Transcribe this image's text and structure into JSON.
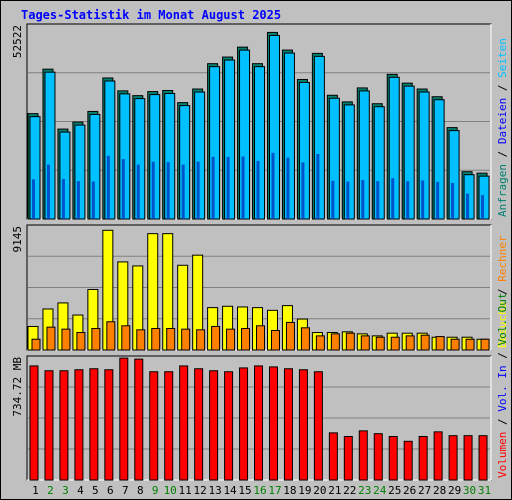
{
  "title": "Tages-Statistik im Monat August 2025",
  "colors": {
    "background": "#C0C0C0",
    "hits": "#00806F",
    "files": "#00C0FF",
    "pages": "#0040C0",
    "visits": "#FFFF00",
    "sites": "#FF8000",
    "kbytes": "#FF0000",
    "weekday_label": "#000000",
    "weekend_label": "#008000",
    "title": "#0000FF"
  },
  "chart_data": [
    {
      "type": "bar",
      "panel": "top",
      "max_label": "52522",
      "ylim": [
        0,
        52522
      ],
      "right_labels": [
        {
          "text": "Anfragen",
          "color": "#00806F"
        },
        {
          "text": "Dateien",
          "color": "#0000FF"
        },
        {
          "text": "Seiten",
          "color": "#00C0FF"
        }
      ],
      "right_separators": [
        "/",
        "/"
      ],
      "categories": [
        "1",
        "2",
        "3",
        "4",
        "5",
        "6",
        "7",
        "8",
        "9",
        "10",
        "11",
        "12",
        "13",
        "14",
        "15",
        "16",
        "17",
        "18",
        "19",
        "20",
        "21",
        "22",
        "23",
        "24",
        "25",
        "26",
        "27",
        "28",
        "29",
        "30",
        "31"
      ],
      "series": [
        {
          "name": "Anfragen",
          "values": [
            28400,
            40500,
            24200,
            26100,
            29000,
            38100,
            34600,
            33300,
            34400,
            34700,
            31400,
            35100,
            42000,
            43800,
            46500,
            42000,
            50500,
            45700,
            37700,
            44800,
            33400,
            31600,
            35400,
            31100,
            39100,
            36700,
            35100,
            33000,
            24600,
            12600,
            12200
          ]
        },
        {
          "name": "Dateien",
          "values": [
            28400,
            40500,
            24200,
            26100,
            29000,
            38100,
            34600,
            33300,
            34400,
            34700,
            31400,
            35100,
            42000,
            43800,
            46500,
            42000,
            50500,
            45700,
            37700,
            44800,
            33400,
            31600,
            35400,
            31100,
            39100,
            36700,
            35100,
            33000,
            24600,
            12600,
            12200
          ]
        },
        {
          "name": "Seiten",
          "values": [
            10800,
            14800,
            10900,
            10300,
            10200,
            17200,
            16300,
            14800,
            15600,
            15500,
            14800,
            15600,
            16900,
            16900,
            17000,
            15800,
            18000,
            16700,
            15400,
            17700,
            10400,
            10200,
            10600,
            10300,
            11100,
            10300,
            10500,
            10100,
            9800,
            6900,
            6500
          ]
        }
      ]
    },
    {
      "type": "bar",
      "panel": "middle",
      "max_label": "9145",
      "ylim": [
        0,
        9145
      ],
      "right_labels": [
        {
          "text": "Besuche",
          "color": "#FFFF00"
        },
        {
          "text": "Rechner",
          "color": "#FF8000"
        }
      ],
      "right_separators": [
        "/"
      ],
      "categories": [
        "1",
        "2",
        "3",
        "4",
        "5",
        "6",
        "7",
        "8",
        "9",
        "10",
        "11",
        "12",
        "13",
        "14",
        "15",
        "16",
        "17",
        "18",
        "19",
        "20",
        "21",
        "22",
        "23",
        "24",
        "25",
        "26",
        "27",
        "28",
        "29",
        "30",
        "31"
      ],
      "series": [
        {
          "name": "Besuche",
          "values": [
            1750,
            3050,
            3500,
            2600,
            4500,
            8900,
            6550,
            6250,
            8650,
            8650,
            6300,
            7050,
            3150,
            3250,
            3200,
            3150,
            2950,
            3300,
            2300,
            1300,
            1300,
            1350,
            1200,
            1050,
            1250,
            1250,
            1250,
            950,
            950,
            950,
            800
          ]
        },
        {
          "name": "Rechner",
          "values": [
            800,
            1700,
            1550,
            1300,
            1600,
            2100,
            1800,
            1500,
            1600,
            1600,
            1550,
            1500,
            1750,
            1550,
            1600,
            1800,
            1450,
            2050,
            1650,
            1050,
            1200,
            1250,
            1050,
            950,
            950,
            1050,
            1100,
            1000,
            800,
            800,
            800
          ]
        }
      ]
    },
    {
      "type": "bar",
      "panel": "bottom",
      "max_label": "734.72 MB",
      "ylim": [
        0,
        734.72
      ],
      "right_labels": [
        {
          "text": "Volumen",
          "color": "#FF0000"
        },
        {
          "text": "Vol. In",
          "color": "#0000FF"
        },
        {
          "text": "Vol. Out",
          "color": "#008000"
        }
      ],
      "right_separators": [
        "/",
        "/"
      ],
      "categories": [
        "1",
        "2",
        "3",
        "4",
        "5",
        "6",
        "7",
        "8",
        "9",
        "10",
        "11",
        "12",
        "13",
        "14",
        "15",
        "16",
        "17",
        "18",
        "19",
        "20",
        "21",
        "22",
        "23",
        "24",
        "25",
        "26",
        "27",
        "28",
        "29",
        "30",
        "31"
      ],
      "series": [
        {
          "name": "Volumen",
          "values": [
            687,
            658,
            658,
            664,
            670,
            664,
            734,
            728,
            652,
            652,
            687,
            670,
            658,
            652,
            675,
            687,
            681,
            670,
            664,
            652,
            284,
            262,
            296,
            279,
            262,
            233,
            262,
            290,
            267,
            267,
            267
          ]
        }
      ]
    }
  ],
  "weekend_days": [
    "2",
    "3",
    "9",
    "10",
    "16",
    "17",
    "23",
    "24",
    "30",
    "31"
  ]
}
